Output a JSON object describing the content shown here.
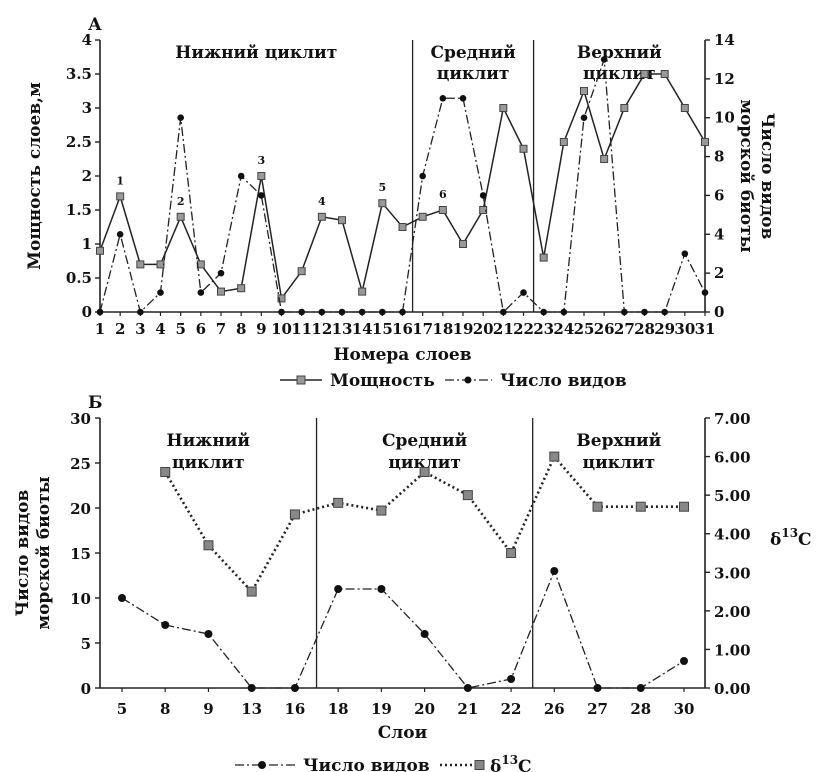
{
  "chart_data": [
    {
      "panel": "А",
      "type": "line",
      "xlabel": "Номера слоев",
      "ylabel_left": "Мощность слоев,м",
      "ylabel_right": "Число видов морской биоты",
      "ylim_left": [
        0,
        4
      ],
      "yticks_left": [
        "0",
        "0.5",
        "1",
        "1.5",
        "2",
        "2.5",
        "3",
        "3.5",
        "4"
      ],
      "ylim_right": [
        0,
        14
      ],
      "yticks_right": [
        "0",
        "2",
        "4",
        "6",
        "8",
        "10",
        "12",
        "14"
      ],
      "x": [
        1,
        2,
        3,
        4,
        5,
        6,
        7,
        8,
        9,
        10,
        11,
        12,
        13,
        14,
        15,
        16,
        17,
        18,
        19,
        20,
        21,
        22,
        23,
        24,
        25,
        26,
        27,
        28,
        29,
        30,
        31
      ],
      "regions": [
        {
          "label": "Нижний циклит",
          "start": 1,
          "end": 16
        },
        {
          "label": "Средний циклит",
          "start": 16,
          "end": 22
        },
        {
          "label": "Верхний циклит",
          "start": 22,
          "end": 31
        }
      ],
      "dividers": [
        16.5,
        22.5
      ],
      "series": [
        {
          "name": "Мощность",
          "axis": "left",
          "style": "solid-square",
          "values": [
            0.9,
            1.7,
            0.7,
            0.7,
            1.4,
            0.7,
            0.3,
            0.35,
            2.0,
            0.2,
            0.6,
            1.4,
            1.35,
            0.3,
            1.6,
            1.25,
            1.4,
            1.5,
            1.0,
            1.5,
            3.0,
            2.4,
            0.8,
            2.5,
            3.25,
            2.25,
            3.0,
            3.5,
            3.5,
            3.0,
            2.5
          ]
        },
        {
          "name": "Число видов",
          "axis": "right",
          "style": "dashdot-circle",
          "values": [
            0,
            4,
            0,
            1,
            10,
            1,
            2,
            7,
            6,
            0,
            0,
            0,
            0,
            0,
            0,
            0,
            7,
            11,
            11,
            6,
            0,
            1,
            0,
            0,
            10,
            13,
            0,
            0,
            0,
            3,
            1
          ]
        }
      ],
      "annotations": [
        {
          "text": "1",
          "x": 2,
          "y": 1.7
        },
        {
          "text": "2",
          "x": 5,
          "y": 1.4
        },
        {
          "text": "3",
          "x": 9,
          "y": 2.0
        },
        {
          "text": "4",
          "x": 12,
          "y": 1.4
        },
        {
          "text": "5",
          "x": 15,
          "y": 1.6
        },
        {
          "text": "6",
          "x": 18,
          "y": 1.5
        }
      ]
    },
    {
      "panel": "Б",
      "type": "line",
      "xlabel": "Слои",
      "ylabel_left": "Число видов морской биоты",
      "ylabel_right": "δ13C",
      "categories": [
        "5",
        "8",
        "9",
        "13",
        "16",
        "18",
        "19",
        "20",
        "21",
        "22",
        "26",
        "27",
        "28",
        "30"
      ],
      "ylim_left": [
        0,
        30
      ],
      "yticks_left": [
        "0",
        "5",
        "10",
        "15",
        "20",
        "25",
        "30"
      ],
      "ylim_right": [
        0,
        7
      ],
      "yticks_right": [
        "0.00",
        "1.00",
        "2.00",
        "3.00",
        "4.00",
        "5.00",
        "6.00",
        "7.00"
      ],
      "regions": [
        {
          "label": "Нижний циклит",
          "start": 0,
          "end": 4
        },
        {
          "label": "Средний циклит",
          "start": 5,
          "end": 9
        },
        {
          "label": "Верхний циклит",
          "start": 10,
          "end": 13
        }
      ],
      "dividers": [
        4.5,
        9.5
      ],
      "series": [
        {
          "name": "Число видов",
          "axis": "left",
          "style": "dashdot-circle",
          "values": [
            10,
            7,
            6,
            0,
            0,
            11,
            11,
            6,
            0,
            1,
            13,
            0,
            0,
            3
          ]
        },
        {
          "name": "δ13C",
          "axis": "right",
          "style": "dotted-square",
          "values": [
            null,
            5.6,
            3.7,
            2.5,
            4.5,
            4.8,
            4.6,
            5.6,
            5.0,
            3.5,
            6.0,
            4.7,
            4.7,
            4.7
          ]
        }
      ]
    }
  ]
}
